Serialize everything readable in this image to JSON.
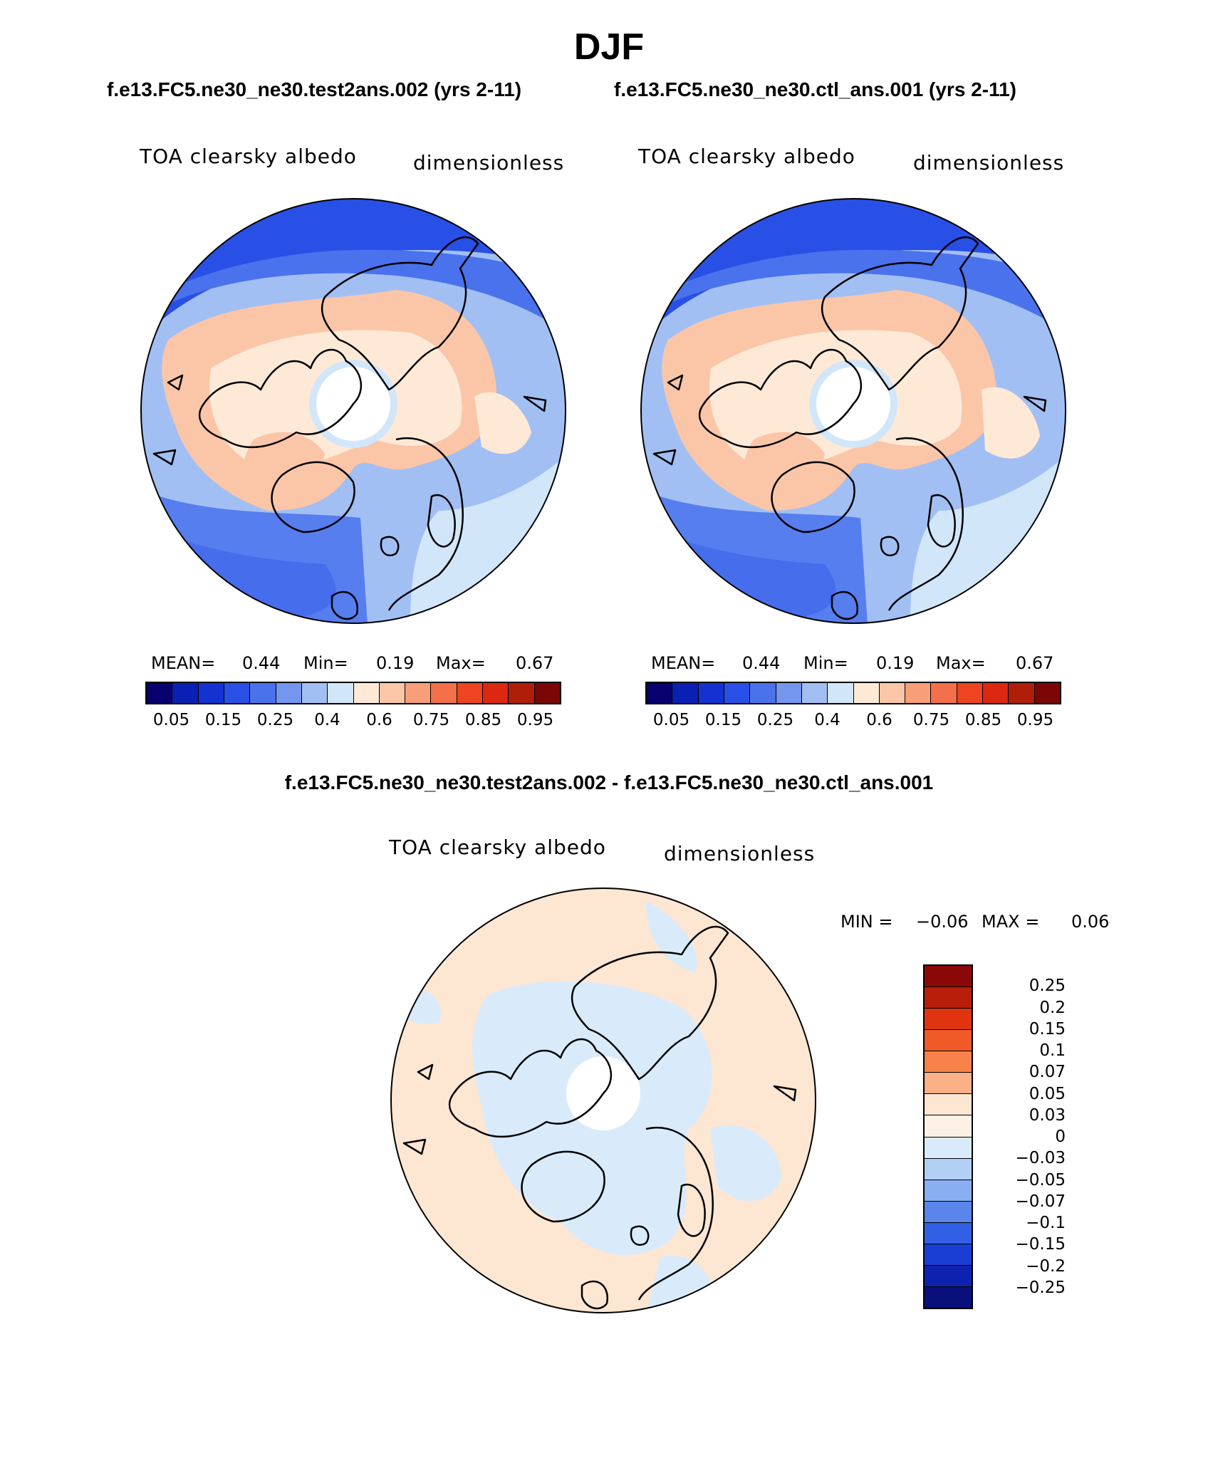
{
  "figure": {
    "season": "DJF",
    "case_test": "f.e13.FC5.ne30_ne30.test2ans.002 (yrs 2-11)",
    "case_ctl": "f.e13.FC5.ne30_ne30.ctl_ans.001 (yrs 2-11)",
    "diff_title": "f.e13.FC5.ne30_ne30.test2ans.002 - f.e13.FC5.ne30_ne30.ctl_ans.001"
  },
  "panels": {
    "test": {
      "variable": "TOA clearsky albedo",
      "units": "dimensionless",
      "mean_label": "MEAN=",
      "mean": "0.44",
      "min_label": "Min=",
      "min": "0.19",
      "max_label": "Max=",
      "max": "0.67"
    },
    "ctl": {
      "variable": "TOA clearsky albedo",
      "units": "dimensionless",
      "mean_label": "MEAN=",
      "mean": "0.44",
      "min_label": "Min=",
      "min": "0.19",
      "max_label": "Max=",
      "max": "0.67"
    },
    "diff": {
      "variable": "TOA clearsky albedo",
      "units": "dimensionless",
      "min_label": "MIN =",
      "min": "−0.06",
      "max_label": "MAX =",
      "max": "0.06"
    }
  },
  "colorbars": {
    "abs": {
      "colors": [
        "#08006e",
        "#0a1fb4",
        "#1432d2",
        "#2850e6",
        "#4a72ec",
        "#7496ee",
        "#a2bff4",
        "#d2e6fa",
        "#fde9d6",
        "#fbc6a8",
        "#f89e78",
        "#f4704a",
        "#ee4420",
        "#dc2810",
        "#b01e0a",
        "#7a0606"
      ],
      "tick_labels": [
        "0.05",
        "0.15",
        "0.25",
        "0.4",
        "0.6",
        "0.75",
        "0.85",
        "0.95"
      ]
    },
    "diff": {
      "colors_top_to_bottom": [
        "#8a0808",
        "#b81e0a",
        "#e03410",
        "#f05a28",
        "#f8834a",
        "#fbb088",
        "#fde6d2",
        "#fdf1e6",
        "#d9ebfb",
        "#b2cff6",
        "#8aaef2",
        "#5a86ec",
        "#3260e4",
        "#1a3ed4",
        "#0e22b0",
        "#08107c"
      ],
      "tick_labels": [
        "0.25",
        "0.2",
        "0.15",
        "0.1",
        "0.07",
        "0.05",
        "0.03",
        "0",
        "−0.03",
        "−0.05",
        "−0.07",
        "−0.1",
        "−0.15",
        "−0.2",
        "−0.25"
      ]
    }
  }
}
